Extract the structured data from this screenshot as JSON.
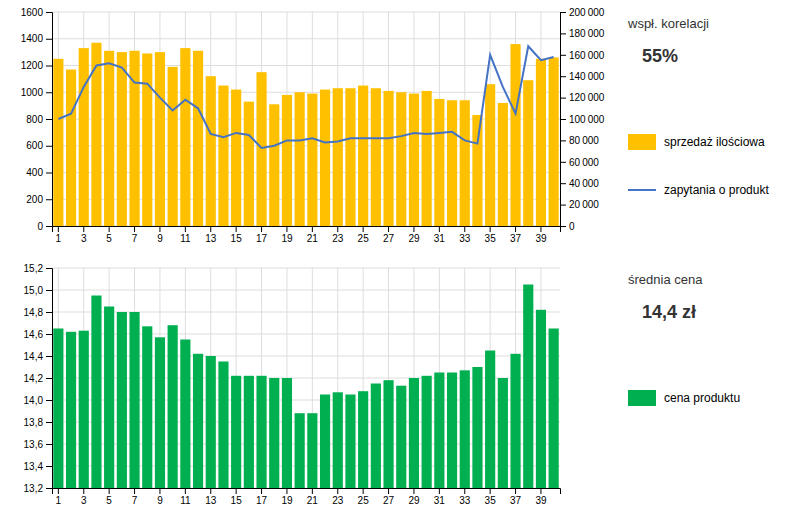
{
  "chart_data": [
    {
      "type": "bar",
      "categories": [
        "1",
        null,
        "3",
        null,
        "5",
        null,
        "7",
        null,
        "9",
        null,
        "11",
        null,
        "13",
        null,
        "15",
        null,
        "17",
        null,
        "19",
        null,
        "21",
        null,
        "23",
        null,
        "25",
        null,
        "27",
        null,
        "29",
        null,
        "31",
        null,
        "33",
        null,
        "35",
        null,
        "37",
        null,
        "39",
        null
      ],
      "series": [
        {
          "name": "sprzedaż ilościowa",
          "type": "bar",
          "color": "#FFC000",
          "values": [
            1250,
            1170,
            1330,
            1370,
            1310,
            1300,
            1310,
            1290,
            1300,
            1190,
            1330,
            1310,
            1120,
            1050,
            1020,
            930,
            1150,
            910,
            980,
            1000,
            990,
            1020,
            1030,
            1030,
            1050,
            1030,
            1010,
            1000,
            990,
            1010,
            950,
            940,
            940,
            830,
            1060,
            920,
            1360,
            1090,
            1250,
            1260
          ]
        },
        {
          "name": "zapytania o produkt",
          "type": "line",
          "color": "#4472C4",
          "axis": "y2",
          "values": [
            100000,
            105000,
            130000,
            150000,
            152000,
            148000,
            134000,
            133000,
            120000,
            108000,
            118000,
            110000,
            86000,
            83000,
            87000,
            85000,
            73000,
            75000,
            80000,
            80000,
            82000,
            78000,
            79000,
            82000,
            82000,
            82000,
            82000,
            84000,
            87000,
            86000,
            87000,
            88000,
            80000,
            77000,
            160000,
            130000,
            105000,
            168000,
            155000,
            158000
          ]
        }
      ],
      "ylim": [
        0,
        1600
      ],
      "yticks": [
        0,
        200,
        400,
        600,
        800,
        1000,
        1200,
        1400,
        1600
      ],
      "y2lim": [
        0,
        200000
      ],
      "y2ticks": [
        0,
        {
          "value": 20000,
          "label": "20 000"
        },
        {
          "value": 40000,
          "label": "40 000"
        },
        {
          "value": 60000,
          "label": "60 000"
        },
        {
          "value": 80000,
          "label": "80 000"
        },
        {
          "value": 100000,
          "label": "100 000"
        },
        {
          "value": 120000,
          "label": "120 000"
        },
        {
          "value": 140000,
          "label": "140 000"
        },
        {
          "value": 160000,
          "label": "160 000"
        },
        {
          "value": 180000,
          "label": "180 000"
        },
        {
          "value": 200000,
          "label": "200 000"
        }
      ],
      "annotations": [
        "wspł. korelacji",
        "55%"
      ],
      "grid": true,
      "legend": "right"
    },
    {
      "type": "bar",
      "categories": [
        "1",
        null,
        "3",
        null,
        "5",
        null,
        "7",
        null,
        "9",
        null,
        "11",
        null,
        "13",
        null,
        "15",
        null,
        "17",
        null,
        "19",
        null,
        "21",
        null,
        "23",
        null,
        "25",
        null,
        "27",
        null,
        "29",
        null,
        "31",
        null,
        "33",
        null,
        "35",
        null,
        "37",
        null,
        "39",
        null
      ],
      "series": [
        {
          "name": "cena produktu",
          "type": "bar",
          "color": "#00B050",
          "values": [
            14.65,
            14.62,
            14.63,
            14.95,
            14.85,
            14.8,
            14.8,
            14.67,
            14.57,
            14.68,
            14.55,
            14.42,
            14.4,
            14.35,
            14.22,
            14.22,
            14.22,
            14.2,
            14.2,
            13.88,
            13.88,
            14.05,
            14.07,
            14.05,
            14.08,
            14.15,
            14.18,
            14.13,
            14.2,
            14.22,
            14.25,
            14.25,
            14.27,
            14.3,
            14.45,
            14.2,
            14.42,
            15.05,
            14.82,
            14.65
          ]
        }
      ],
      "ylim": [
        13.2,
        15.2
      ],
      "yticks": [
        {
          "value": 13.2,
          "label": "13,2"
        },
        {
          "value": 13.4,
          "label": "13,4"
        },
        {
          "value": 13.6,
          "label": "13,6"
        },
        {
          "value": 13.8,
          "label": "13,8"
        },
        {
          "value": 14.0,
          "label": "14,0"
        },
        {
          "value": 14.2,
          "label": "14,2"
        },
        {
          "value": 14.4,
          "label": "14,4"
        },
        {
          "value": 14.6,
          "label": "14,6"
        },
        {
          "value": 14.8,
          "label": "14,8"
        },
        {
          "value": 15.0,
          "label": "15,0"
        },
        {
          "value": 15.2,
          "label": "15,2"
        }
      ],
      "annotations": [
        "średnia cena",
        "14,4 zł"
      ],
      "grid": true,
      "legend": "right"
    }
  ]
}
